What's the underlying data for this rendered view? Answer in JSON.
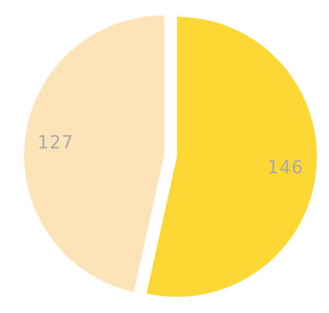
{
  "chart_data": {
    "type": "pie",
    "title": "",
    "categories": [
      "",
      ""
    ],
    "values": [
      146,
      127
    ],
    "data_labels": [
      "146",
      "127"
    ],
    "colors": [
      "#FDD835",
      "#FCE4B8"
    ],
    "legend": "none",
    "exploded": true
  }
}
